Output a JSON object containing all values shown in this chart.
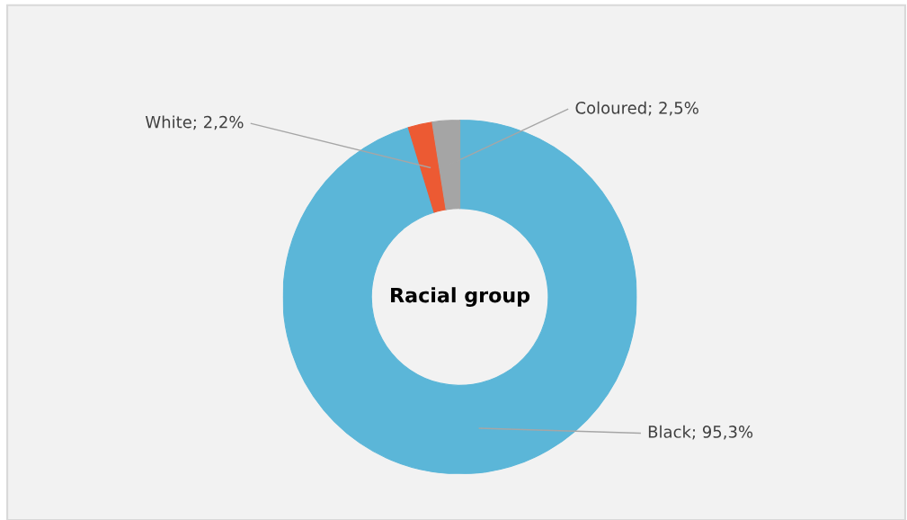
{
  "chart_data": {
    "type": "donut",
    "title": "Racial group",
    "categories": [
      "Black",
      "White",
      "Coloured"
    ],
    "values": [
      95.3,
      2.2,
      2.5
    ],
    "colors": [
      "#5bb6d8",
      "#ec5a33",
      "#a5a5a5"
    ],
    "value_labels": [
      "95,3%",
      "2,2%",
      "2,5%"
    ]
  }
}
